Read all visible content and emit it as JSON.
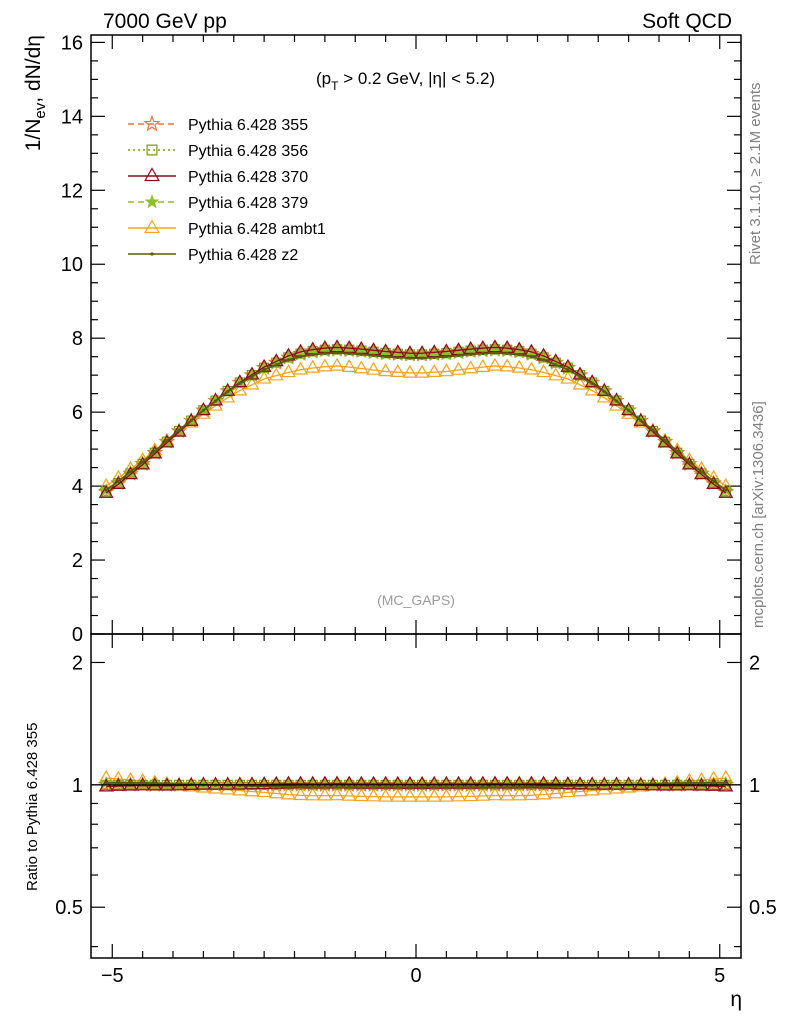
{
  "header": {
    "left": "7000 GeV pp",
    "right": "Soft QCD"
  },
  "annotation": {
    "cut_pre": "(p",
    "cut_sub": "T",
    "cut_post": " > 0.2 GeV, |η| < 5.2)",
    "analysis": "(MC_GAPS)"
  },
  "side_labels": {
    "rivet": "Rivet 3.1.10, ≥ 2.1M events",
    "mcplots": "mcplots.cern.ch [arXiv:1306.3436]"
  },
  "chart_data": {
    "type": "line",
    "xlabel": "η",
    "ylabel_main": "1/N_ev, dN/dη",
    "ylabel_main_parts": {
      "a": "1/N",
      "sub": "ev",
      "b": ", dN/dη"
    },
    "ylabel_ratio": "Ratio to Pythia 6.428 355",
    "xlim": [
      -5.35,
      5.35
    ],
    "ylim_main": [
      0,
      16.2
    ],
    "ylim_ratio": [
      0.375,
      2.35
    ],
    "log_ratio": true,
    "x_ticks": [
      -5,
      0,
      5
    ],
    "x_tick_labels": [
      "−5",
      "0",
      "5"
    ],
    "y_ticks_main": [
      0,
      2,
      4,
      6,
      8,
      10,
      12,
      14,
      16
    ],
    "y_ticks_ratio": [
      0.5,
      1,
      2
    ],
    "y_tick_labels_ratio": [
      "0.5",
      "1",
      "2"
    ],
    "legend_position": "top-left",
    "bin_range": [
      -5.2,
      5.2
    ],
    "bin_count": 52,
    "profile_eta": [
      0,
      0.5,
      1.0,
      1.3,
      1.6,
      2.0,
      2.5,
      3.0,
      3.5,
      4.0,
      4.5,
      5.0,
      5.2
    ],
    "series": [
      {
        "name": "Pythia 6.428 355",
        "color": "#e8743b",
        "dash": "6,4",
        "marker": "star-open",
        "profile_y": [
          7.55,
          7.6,
          7.68,
          7.7,
          7.68,
          7.55,
          7.2,
          6.7,
          6.05,
          5.35,
          4.6,
          3.95,
          3.75
        ]
      },
      {
        "name": "Pythia 6.428 356",
        "color": "#7a9a1a",
        "dash": "2,3",
        "marker": "square-open",
        "profile_y": [
          7.55,
          7.6,
          7.68,
          7.7,
          7.68,
          7.55,
          7.2,
          6.7,
          6.05,
          5.35,
          4.6,
          3.95,
          3.75
        ]
      },
      {
        "name": "Pythia 6.428 370",
        "color": "#8b0a1a",
        "dash": "",
        "marker": "triangle-open",
        "profile_y": [
          7.58,
          7.64,
          7.72,
          7.75,
          7.72,
          7.6,
          7.22,
          6.7,
          6.05,
          5.32,
          4.58,
          3.92,
          3.7
        ]
      },
      {
        "name": "Pythia 6.428 379",
        "color": "#8fc02a",
        "dash": "6,4",
        "marker": "star-filled",
        "profile_y": [
          7.52,
          7.56,
          7.64,
          7.66,
          7.64,
          7.52,
          7.18,
          6.68,
          6.05,
          5.37,
          4.62,
          3.98,
          3.8
        ]
      },
      {
        "name": "Pythia 6.428 ambt1",
        "color": "#f5a31a",
        "dash": "",
        "marker": "triangle-open",
        "profile_y": [
          7.05,
          7.1,
          7.2,
          7.25,
          7.22,
          7.12,
          6.9,
          6.5,
          5.95,
          5.35,
          4.7,
          4.1,
          3.9
        ]
      },
      {
        "name": "Pythia 6.428 z2",
        "color": "#5a5a0a",
        "dash": "",
        "marker": "dot",
        "profile_y": [
          7.45,
          7.5,
          7.58,
          7.6,
          7.58,
          7.48,
          7.15,
          6.68,
          6.05,
          5.38,
          4.65,
          4.0,
          3.78
        ]
      }
    ]
  }
}
